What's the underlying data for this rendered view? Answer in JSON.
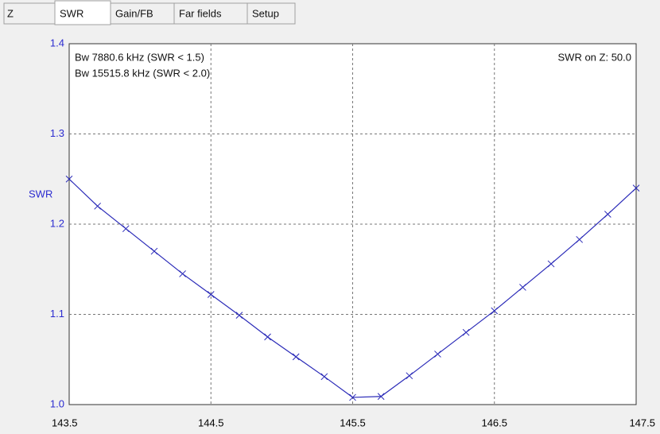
{
  "tabs": [
    "Z",
    "SWR",
    "Gain/FB",
    "Far fields",
    "Setup"
  ],
  "active_tab": 1,
  "chart_data": {
    "type": "line",
    "ylabel": "SWR",
    "annotations": [
      "Bw 7880.6 kHz (SWR < 1.5)",
      "Bw 15515.8 kHz (SWR < 2.0)",
      "SWR on Z: 50.0"
    ],
    "x": [
      143.5,
      143.7,
      143.9,
      144.1,
      144.3,
      144.5,
      144.7,
      144.9,
      145.1,
      145.3,
      145.5,
      145.7,
      145.9,
      146.1,
      146.3,
      146.5,
      146.7,
      146.9,
      147.1,
      147.3,
      147.5
    ],
    "series": [
      {
        "color": "#2a2ab8",
        "values": [
          1.25,
          1.22,
          1.195,
          1.17,
          1.145,
          1.122,
          1.099,
          1.075,
          1.053,
          1.031,
          1.008,
          1.009,
          1.032,
          1.056,
          1.08,
          1.104,
          1.13,
          1.156,
          1.183,
          1.211,
          1.24
        ]
      }
    ],
    "xlim": [
      143.5,
      147.5
    ],
    "xticks": [
      143.5,
      144.5,
      145.5,
      146.5,
      147.5
    ],
    "ylim": [
      1,
      1.4
    ],
    "yticks": [
      {
        "value": 1,
        "label": "1.0"
      },
      1.1,
      1.2,
      1.3,
      1.4
    ],
    "grid": true,
    "tick_color": "#2b2bd0"
  }
}
